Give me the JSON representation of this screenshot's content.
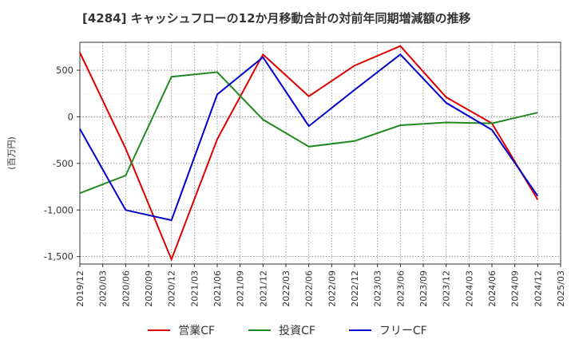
{
  "chart_data": {
    "type": "line",
    "title": "[4284]  キャッシュフローの12か月移動合計の対前年同期増減額の推移",
    "ylabel": "(百万円)",
    "xlabel": "",
    "ylim": [
      -1580,
      800
    ],
    "yticks": [
      500,
      0,
      -500,
      -1000,
      -1500
    ],
    "ytick_labels": [
      "500",
      "0",
      "-500",
      "-1,000",
      "-1,500"
    ],
    "categories": [
      "2019/12",
      "2020/03",
      "2020/06",
      "2020/09",
      "2020/12",
      "2021/03",
      "2021/06",
      "2021/09",
      "2021/12",
      "2022/03",
      "2022/06",
      "2022/09",
      "2022/12",
      "2023/03",
      "2023/06",
      "2023/09",
      "2023/12",
      "2024/03",
      "2024/06",
      "2024/09",
      "2024/12",
      "2025/03"
    ],
    "series": [
      {
        "name": "営業CF",
        "color": "#dd0000",
        "points": [
          {
            "x": "2019/12",
            "y": 690
          },
          {
            "x": "2020/06",
            "y": -340
          },
          {
            "x": "2020/12",
            "y": -1530
          },
          {
            "x": "2021/06",
            "y": -240
          },
          {
            "x": "2021/12",
            "y": 670
          },
          {
            "x": "2022/06",
            "y": 220
          },
          {
            "x": "2022/12",
            "y": 550
          },
          {
            "x": "2023/06",
            "y": 760
          },
          {
            "x": "2023/12",
            "y": 210
          },
          {
            "x": "2024/06",
            "y": -70
          },
          {
            "x": "2024/12",
            "y": -890
          }
        ]
      },
      {
        "name": "投資CF",
        "color": "#228822",
        "points": [
          {
            "x": "2019/12",
            "y": -820
          },
          {
            "x": "2020/06",
            "y": -630
          },
          {
            "x": "2020/12",
            "y": 430
          },
          {
            "x": "2021/06",
            "y": 480
          },
          {
            "x": "2021/12",
            "y": -30
          },
          {
            "x": "2022/06",
            "y": -320
          },
          {
            "x": "2022/12",
            "y": -260
          },
          {
            "x": "2023/06",
            "y": -90
          },
          {
            "x": "2023/12",
            "y": -60
          },
          {
            "x": "2024/06",
            "y": -70
          },
          {
            "x": "2024/12",
            "y": 45
          }
        ]
      },
      {
        "name": "フリーCF",
        "color": "#0000cc",
        "points": [
          {
            "x": "2019/12",
            "y": -130
          },
          {
            "x": "2020/06",
            "y": -1000
          },
          {
            "x": "2020/12",
            "y": -1110
          },
          {
            "x": "2021/06",
            "y": 240
          },
          {
            "x": "2021/12",
            "y": 640
          },
          {
            "x": "2022/06",
            "y": -100
          },
          {
            "x": "2022/12",
            "y": 290
          },
          {
            "x": "2023/06",
            "y": 670
          },
          {
            "x": "2023/12",
            "y": 150
          },
          {
            "x": "2024/06",
            "y": -140
          },
          {
            "x": "2024/12",
            "y": -850
          }
        ]
      }
    ],
    "legend_position": "bottom",
    "grid": true
  }
}
